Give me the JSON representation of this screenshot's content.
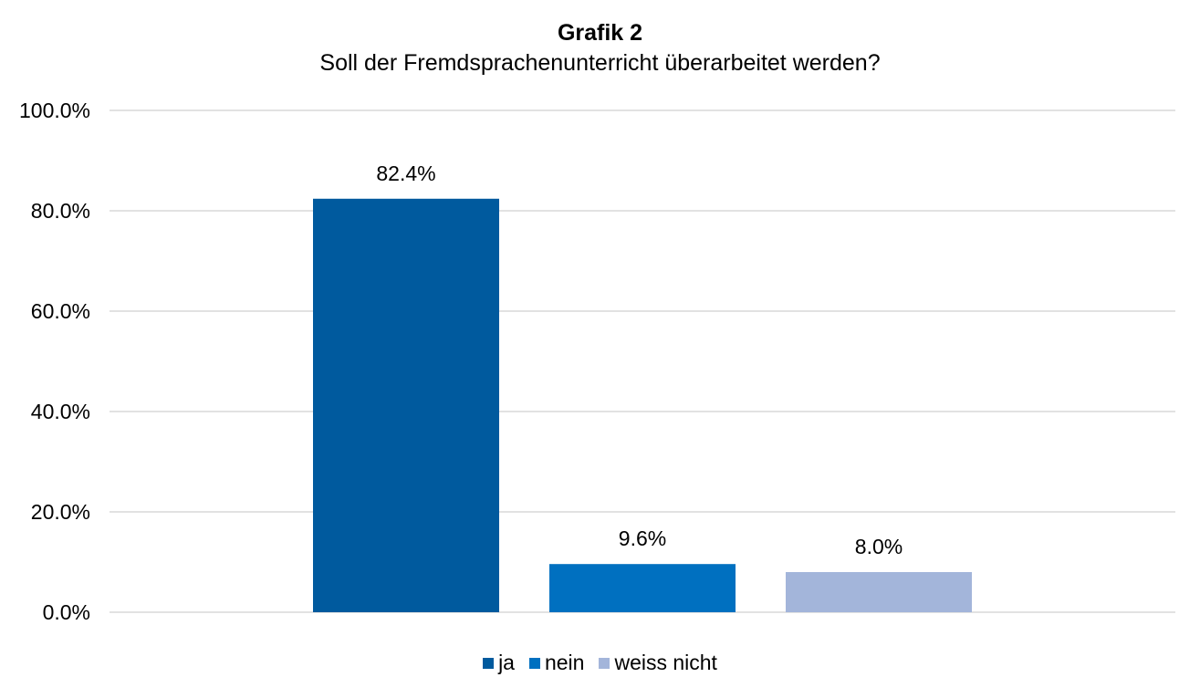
{
  "chart_data": {
    "type": "bar",
    "title": "Grafik 2",
    "subtitle": "Soll der Fremdsprachenunterricht überarbeitet werden?",
    "categories": [
      "ja",
      "nein",
      "weiss nicht"
    ],
    "values": [
      82.4,
      9.6,
      8.0
    ],
    "data_labels": [
      "82.4%",
      "9.6%",
      "8.0%"
    ],
    "colors": [
      "#005A9E",
      "#0070C0",
      "#A3B5DA"
    ],
    "ylim": [
      0,
      100
    ],
    "yticks": [
      0,
      20,
      40,
      60,
      80,
      100
    ],
    "ytick_labels": [
      "0.0%",
      "20.0%",
      "40.0%",
      "60.0%",
      "80.0%",
      "100.0%"
    ],
    "grid": true,
    "gridline_color": "#D9D9D9",
    "legend_position": "bottom",
    "legend": [
      "ja",
      "nein",
      "weiss nicht"
    ]
  }
}
